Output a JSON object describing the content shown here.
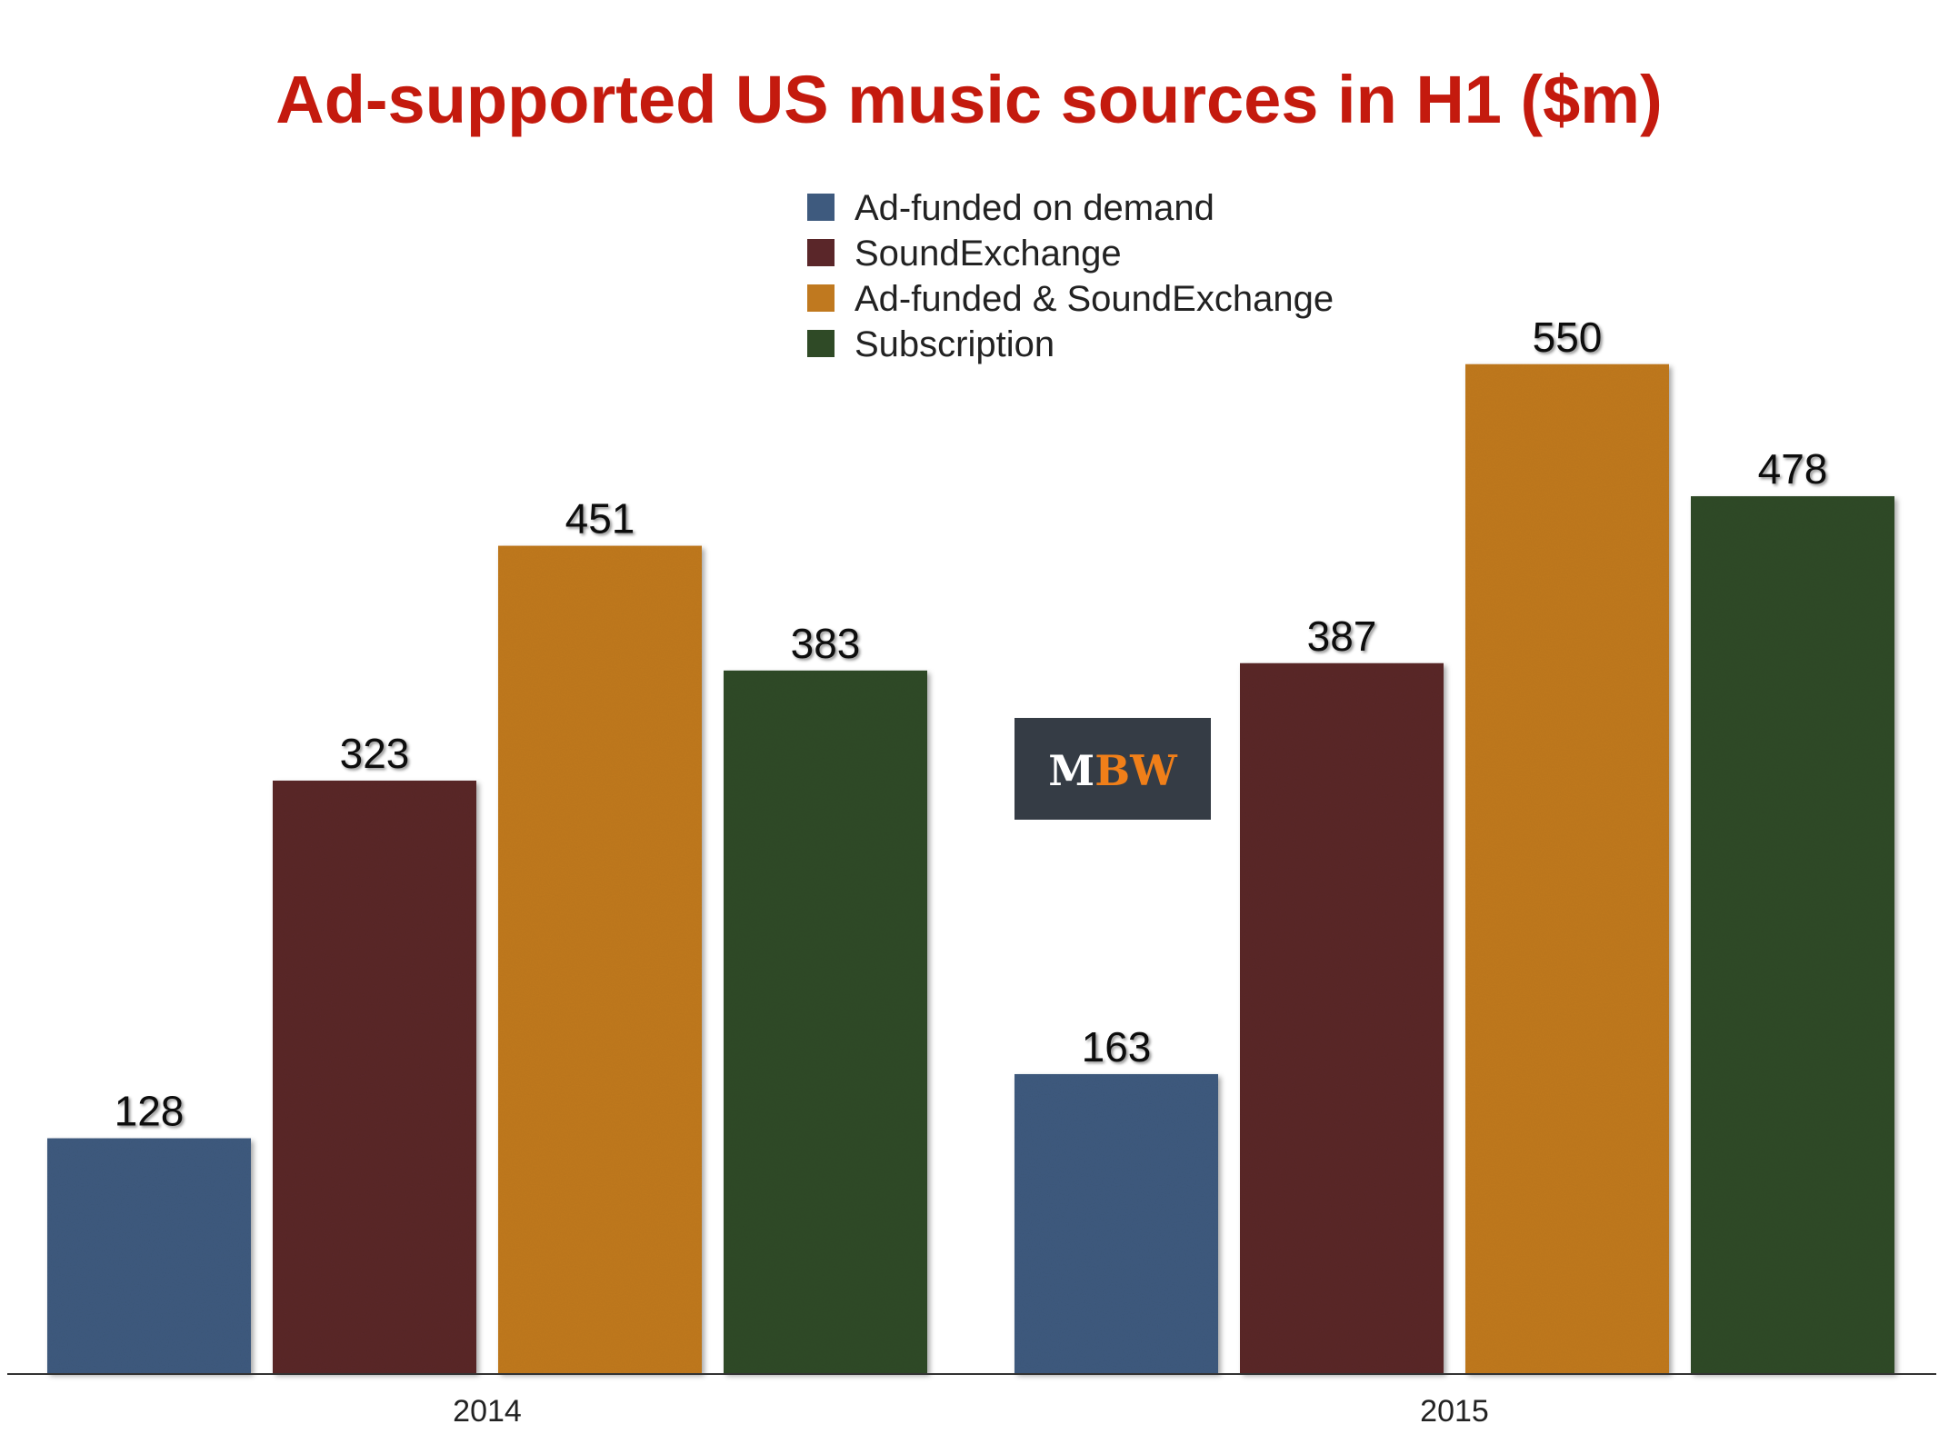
{
  "chart_data": {
    "type": "bar",
    "title": "Ad-supported US music sources in H1 ($m)",
    "xlabel": "",
    "ylabel": "",
    "categories": [
      "2014",
      "2015"
    ],
    "series": [
      {
        "name": "Ad-funded on demand",
        "color": "#3e5a7e",
        "values": [
          128,
          163
        ]
      },
      {
        "name": "SoundExchange",
        "color": "#5a2629",
        "values": [
          323,
          387
        ]
      },
      {
        "name": "Ad-funded & SoundExchange",
        "color": "#c0791f",
        "values": [
          451,
          550
        ]
      },
      {
        "name": "Subscription",
        "color": "#2f4a26",
        "values": [
          383,
          478
        ]
      }
    ],
    "ylim": [
      0,
      680
    ],
    "grid": false,
    "legend_position": "top-center",
    "data_labels": true
  },
  "title_color": "#c41a0e",
  "logo": {
    "text_part1": "M",
    "text_part2": "BW",
    "background": "#353c45",
    "color1": "#ffffff",
    "color2": "#f07f19"
  }
}
